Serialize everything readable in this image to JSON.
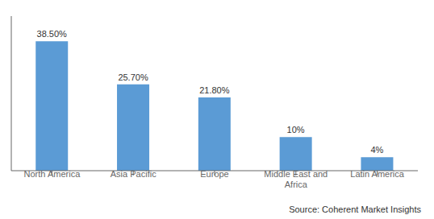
{
  "chart_data": {
    "type": "bar",
    "categories": [
      "North America",
      "Asia Pacific",
      "Europe",
      "Middle East and\nAfrica",
      "Latin America"
    ],
    "values": [
      38.5,
      25.7,
      21.8,
      10.0,
      4.0
    ],
    "value_labels": [
      "38.50%",
      "25.70%",
      "21.80%",
      "10%",
      "4%"
    ],
    "data_labels": true,
    "color": "#5B9BD5",
    "ylim": [
      0,
      46
    ],
    "tick_labels": "x",
    "grid": false,
    "annotations": [
      "Source: Coherent Market Insights"
    ]
  }
}
